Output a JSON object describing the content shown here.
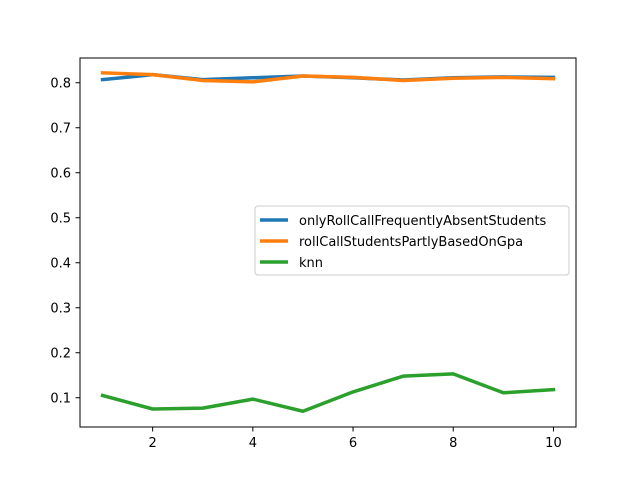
{
  "chart_data": {
    "type": "line",
    "title": "",
    "xlabel": "",
    "ylabel": "",
    "x": [
      1,
      2,
      3,
      4,
      5,
      6,
      7,
      8,
      9,
      10
    ],
    "xlim": [
      0.55,
      10.45
    ],
    "ylim": [
      0.035,
      0.855
    ],
    "xticks": [
      2,
      4,
      6,
      8,
      10
    ],
    "yticks": [
      0.1,
      0.2,
      0.3,
      0.4,
      0.5,
      0.6,
      0.7,
      0.8
    ],
    "xtick_labels": [
      "2",
      "4",
      "6",
      "8",
      "10"
    ],
    "ytick_labels": [
      "0.1",
      "0.2",
      "0.3",
      "0.4",
      "0.5",
      "0.6",
      "0.7",
      "0.8"
    ],
    "grid": false,
    "legend_position": "center-right",
    "series": [
      {
        "name": "onlyRollCallFrequentlyAbsentStudents",
        "color": "#1f77b4",
        "values": [
          0.807,
          0.818,
          0.807,
          0.811,
          0.815,
          0.811,
          0.806,
          0.811,
          0.813,
          0.812
        ]
      },
      {
        "name": "rollCallStudentsPartlyBasedOnGpa",
        "color": "#ff7f0e",
        "values": [
          0.822,
          0.818,
          0.805,
          0.802,
          0.815,
          0.812,
          0.805,
          0.81,
          0.812,
          0.809
        ]
      },
      {
        "name": "knn",
        "color": "#2ca02c",
        "values": [
          0.105,
          0.075,
          0.077,
          0.097,
          0.07,
          0.113,
          0.148,
          0.153,
          0.111,
          0.118
        ]
      }
    ]
  }
}
